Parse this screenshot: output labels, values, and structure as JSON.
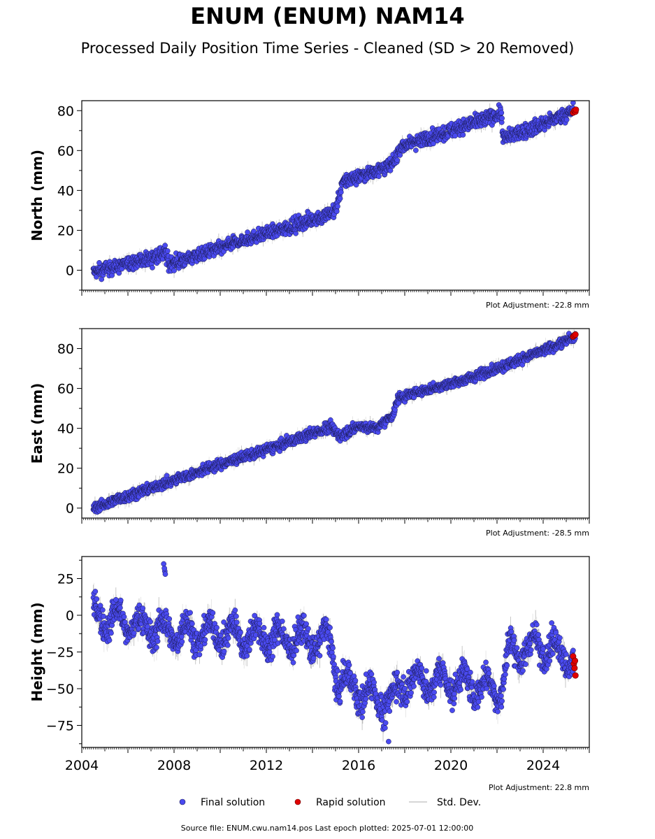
{
  "header": {
    "title": "ENUM (ENUM) NAM14",
    "subtitle": "Processed Daily Position Time Series - Cleaned (SD > 20 Removed)"
  },
  "colors": {
    "final": "#4a4af0",
    "final_edge": "#1a1a50",
    "rapid": "#e00000",
    "stddev": "#c8c8c8",
    "stddev_dense": "#808080"
  },
  "chart_data": [
    {
      "type": "scatter",
      "panel": "north",
      "ylabel": "North (mm)",
      "xlim": [
        2004.0,
        2026.0
      ],
      "ylim": [
        -10,
        85
      ],
      "yticks": [
        0,
        20,
        40,
        60,
        80
      ],
      "adjustment": "Plot Adjustment: -22.8 mm",
      "trend": [
        [
          2004.5,
          -1
        ],
        [
          2007.3,
          7
        ],
        [
          2007.6,
          9
        ],
        [
          2007.8,
          3
        ],
        [
          2011.0,
          15
        ],
        [
          2014.8,
          28
        ],
        [
          2015.0,
          30
        ],
        [
          2015.3,
          44
        ],
        [
          2017.5,
          53
        ],
        [
          2017.8,
          62
        ],
        [
          2020.0,
          70
        ],
        [
          2022.2,
          79
        ],
        [
          2022.25,
          66
        ],
        [
          2023.5,
          71
        ],
        [
          2025.3,
          80
        ]
      ],
      "scatter_mm": 2.5,
      "rapid": [
        [
          2025.3,
          79
        ],
        [
          2025.35,
          80
        ],
        [
          2025.4,
          79.5
        ],
        [
          2025.42,
          80.5
        ]
      ]
    },
    {
      "type": "scatter",
      "panel": "east",
      "ylabel": "East (mm)",
      "xlim": [
        2004.0,
        2026.0
      ],
      "ylim": [
        -5,
        90
      ],
      "yticks": [
        0,
        20,
        40,
        60,
        80
      ],
      "adjustment": "Plot Adjustment: -28.5 mm",
      "trend": [
        [
          2004.5,
          0
        ],
        [
          2007.5,
          12
        ],
        [
          2010.0,
          22
        ],
        [
          2012.5,
          31
        ],
        [
          2014.8,
          41
        ],
        [
          2015.2,
          36
        ],
        [
          2016.0,
          41
        ],
        [
          2016.8,
          40
        ],
        [
          2017.5,
          47
        ],
        [
          2017.7,
          55
        ],
        [
          2018.5,
          58
        ],
        [
          2019.5,
          61
        ],
        [
          2020.5,
          64
        ],
        [
          2022.0,
          70
        ],
        [
          2024.0,
          79
        ],
        [
          2025.4,
          86
        ]
      ],
      "scatter_mm": 1.8,
      "rapid": [
        [
          2025.3,
          86
        ],
        [
          2025.35,
          86.5
        ],
        [
          2025.4,
          87
        ]
      ]
    },
    {
      "type": "scatter",
      "panel": "height",
      "ylabel": "Height (mm)",
      "xlim": [
        2004.0,
        2026.0
      ],
      "ylim": [
        -90,
        40
      ],
      "yticks": [
        -75,
        -50,
        -25,
        0,
        25
      ],
      "adjustment": "Plot Adjustment: 22.8 mm",
      "trend": [
        [
          2004.5,
          0
        ],
        [
          2006.0,
          -5
        ],
        [
          2008.0,
          -12
        ],
        [
          2010.0,
          -12
        ],
        [
          2012.0,
          -15
        ],
        [
          2014.8,
          -18
        ],
        [
          2015.1,
          -45
        ],
        [
          2016.5,
          -55
        ],
        [
          2017.3,
          -60
        ],
        [
          2018.0,
          -45
        ],
        [
          2020.0,
          -45
        ],
        [
          2022.2,
          -50
        ],
        [
          2022.5,
          -25
        ],
        [
          2024.0,
          -20
        ],
        [
          2025.3,
          -30
        ]
      ],
      "scatter_mm": 7,
      "seasonal_mm": 8,
      "outliers": [
        [
          2007.55,
          35
        ],
        [
          2007.6,
          30
        ],
        [
          2007.62,
          28
        ],
        [
          2007.58,
          32
        ],
        [
          2017.3,
          -86
        ]
      ],
      "rapid": [
        [
          2025.3,
          -28
        ],
        [
          2025.33,
          -33
        ],
        [
          2025.36,
          -36
        ],
        [
          2025.4,
          -41
        ],
        [
          2025.38,
          -31
        ]
      ]
    }
  ],
  "xaxis": {
    "ticks": [
      2004,
      2008,
      2012,
      2016,
      2020,
      2024
    ],
    "labels": [
      "2004",
      "2008",
      "2012",
      "2016",
      "2020",
      "2024"
    ]
  },
  "legend": {
    "final": "Final solution",
    "rapid": "Rapid solution",
    "stddev": "Std. Dev."
  },
  "footer": {
    "source": "Source file: ENUM.cwu.nam14.pos  Last epoch plotted: 2025-07-01 12:00:00"
  }
}
